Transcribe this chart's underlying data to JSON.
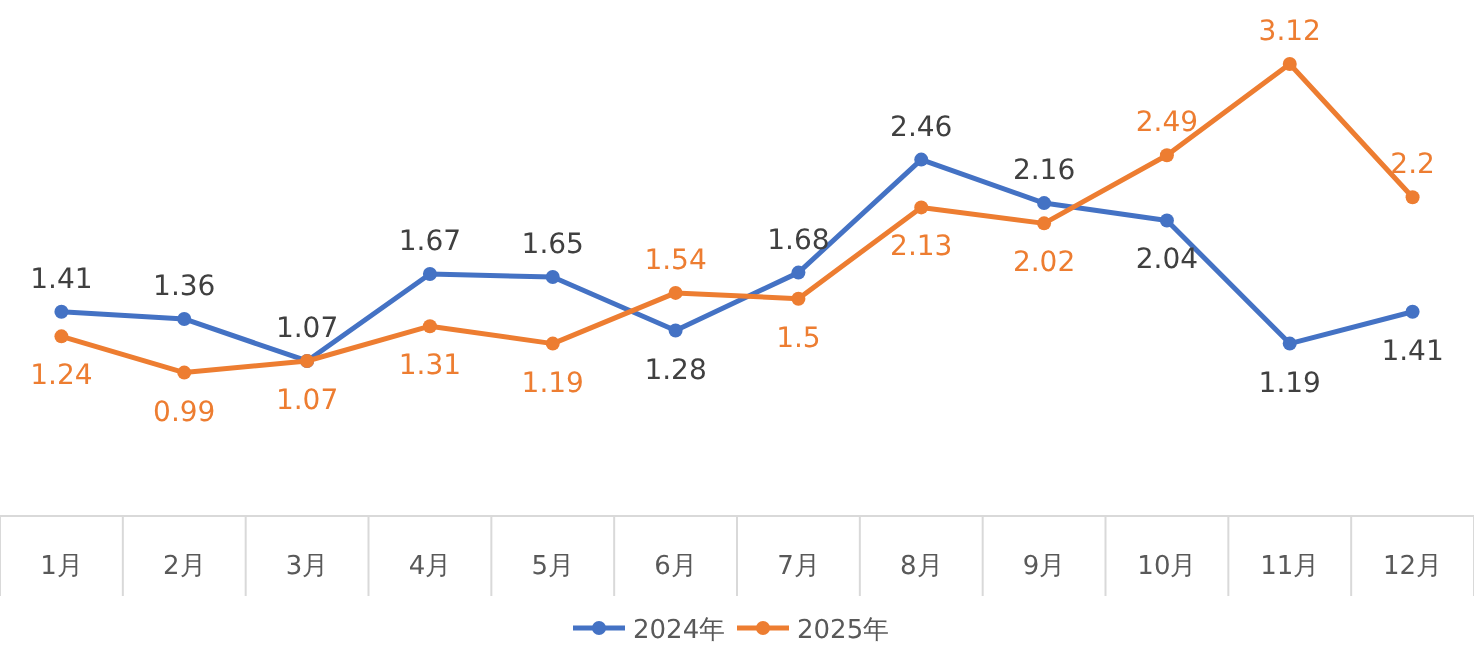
{
  "chart_data": {
    "type": "line",
    "categories": [
      "1月",
      "2月",
      "3月",
      "4月",
      "5月",
      "6月",
      "7月",
      "8月",
      "9月",
      "10月",
      "11月",
      "12月"
    ],
    "series": [
      {
        "name": "2024年",
        "color": "#4472c4",
        "values": [
          1.41,
          1.36,
          1.07,
          1.67,
          1.65,
          1.28,
          1.68,
          2.46,
          2.16,
          2.04,
          1.19,
          1.41
        ]
      },
      {
        "name": "2025年",
        "color": "#ed7d31",
        "values": [
          1.24,
          0.99,
          1.07,
          1.31,
          1.19,
          1.54,
          1.5,
          2.13,
          2.02,
          2.49,
          3.12,
          2.2
        ]
      }
    ],
    "data_labels": true,
    "marker": "circle",
    "legend": "bottom",
    "grid": false
  }
}
